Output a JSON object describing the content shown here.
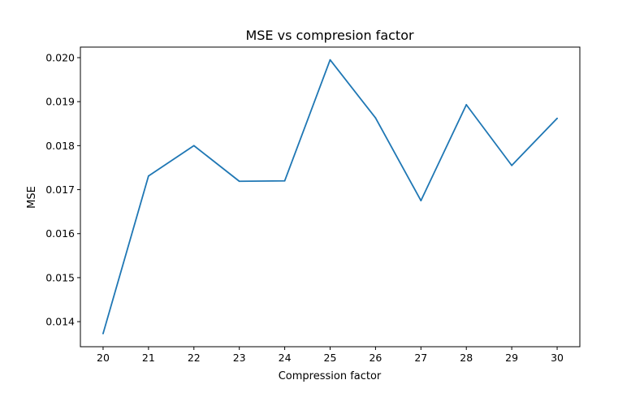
{
  "chart_data": {
    "type": "line",
    "title": "MSE vs compresion factor",
    "xlabel": "Compression factor",
    "ylabel": "MSE",
    "x": [
      20,
      21,
      22,
      23,
      24,
      25,
      26,
      27,
      28,
      29,
      30
    ],
    "series": [
      {
        "values": [
          0.01373,
          0.01731,
          0.018,
          0.01719,
          0.0172,
          0.01995,
          0.01863,
          0.01675,
          0.01893,
          0.01755,
          0.01862
        ],
        "color": "#1f77b4"
      }
    ],
    "xlim": [
      19.5,
      30.5
    ],
    "ylim": [
      0.01343,
      0.02024
    ],
    "xticks": [
      "20",
      "21",
      "22",
      "23",
      "24",
      "25",
      "26",
      "27",
      "28",
      "29",
      "30"
    ],
    "yticks": [
      "0.014",
      "0.015",
      "0.016",
      "0.017",
      "0.018",
      "0.019",
      "0.020"
    ],
    "grid": false,
    "legend": "none"
  }
}
